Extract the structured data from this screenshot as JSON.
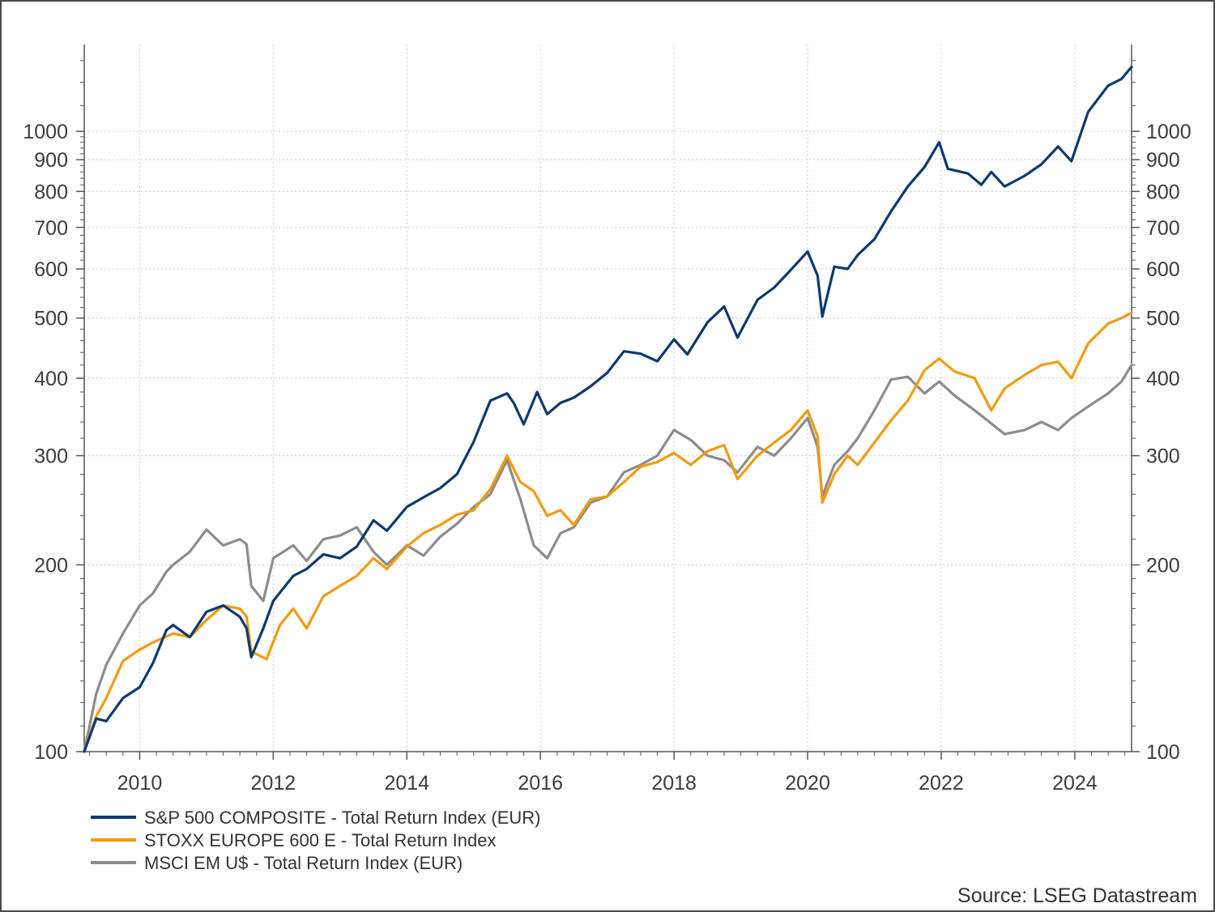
{
  "chart_data": {
    "type": "line",
    "title": "",
    "xlabel": "",
    "ylabel": "",
    "y_scale": "log",
    "ylim": [
      100,
      1380
    ],
    "xlim": [
      2009.17,
      2024.85
    ],
    "grid": true,
    "legend_position": "bottom-left",
    "x_ticks": [
      2010,
      2012,
      2014,
      2016,
      2018,
      2020,
      2022,
      2024
    ],
    "x_tick_labels": [
      "2010",
      "2012",
      "2014",
      "2016",
      "2018",
      "2020",
      "2022",
      "2024"
    ],
    "y_ticks": [
      100,
      200,
      300,
      400,
      500,
      600,
      700,
      800,
      900,
      1000
    ],
    "y_tick_labels": [
      "100",
      "200",
      "300",
      "400",
      "500",
      "600",
      "700",
      "800",
      "900",
      "1000"
    ],
    "series": [
      {
        "name": "S&P 500 COMPOSITE - Total Return Index (EUR)",
        "color": "#0b3a6e",
        "points": [
          [
            2009.17,
            100
          ],
          [
            2009.35,
            113
          ],
          [
            2009.5,
            112
          ],
          [
            2009.75,
            122
          ],
          [
            2010.0,
            127
          ],
          [
            2010.2,
            139
          ],
          [
            2010.4,
            157
          ],
          [
            2010.5,
            160
          ],
          [
            2010.75,
            153
          ],
          [
            2011.0,
            168
          ],
          [
            2011.25,
            172
          ],
          [
            2011.5,
            165
          ],
          [
            2011.6,
            158
          ],
          [
            2011.67,
            142
          ],
          [
            2011.85,
            158
          ],
          [
            2012.0,
            175
          ],
          [
            2012.3,
            192
          ],
          [
            2012.5,
            197
          ],
          [
            2012.75,
            208
          ],
          [
            2013.0,
            205
          ],
          [
            2013.25,
            214
          ],
          [
            2013.5,
            236
          ],
          [
            2013.7,
            227
          ],
          [
            2014.0,
            248
          ],
          [
            2014.25,
            257
          ],
          [
            2014.5,
            266
          ],
          [
            2014.75,
            280
          ],
          [
            2015.0,
            316
          ],
          [
            2015.25,
            368
          ],
          [
            2015.5,
            378
          ],
          [
            2015.6,
            365
          ],
          [
            2015.75,
            337
          ],
          [
            2015.95,
            380
          ],
          [
            2016.1,
            350
          ],
          [
            2016.3,
            365
          ],
          [
            2016.5,
            372
          ],
          [
            2016.75,
            388
          ],
          [
            2017.0,
            408
          ],
          [
            2017.25,
            442
          ],
          [
            2017.5,
            438
          ],
          [
            2017.75,
            426
          ],
          [
            2018.0,
            462
          ],
          [
            2018.2,
            437
          ],
          [
            2018.5,
            492
          ],
          [
            2018.75,
            522
          ],
          [
            2018.95,
            465
          ],
          [
            2019.25,
            535
          ],
          [
            2019.5,
            560
          ],
          [
            2019.75,
            598
          ],
          [
            2020.0,
            640
          ],
          [
            2020.15,
            585
          ],
          [
            2020.22,
            503
          ],
          [
            2020.4,
            605
          ],
          [
            2020.6,
            600
          ],
          [
            2020.75,
            632
          ],
          [
            2021.0,
            670
          ],
          [
            2021.25,
            743
          ],
          [
            2021.5,
            815
          ],
          [
            2021.75,
            876
          ],
          [
            2021.97,
            960
          ],
          [
            2022.1,
            870
          ],
          [
            2022.4,
            855
          ],
          [
            2022.6,
            820
          ],
          [
            2022.75,
            860
          ],
          [
            2022.95,
            815
          ],
          [
            2023.25,
            848
          ],
          [
            2023.5,
            885
          ],
          [
            2023.75,
            945
          ],
          [
            2023.95,
            895
          ],
          [
            2024.2,
            1075
          ],
          [
            2024.5,
            1185
          ],
          [
            2024.7,
            1215
          ],
          [
            2024.85,
            1270
          ]
        ]
      },
      {
        "name": "STOXX EUROPE 600 E - Total Return Index",
        "color": "#f29a0e",
        "points": [
          [
            2009.17,
            100
          ],
          [
            2009.35,
            114
          ],
          [
            2009.5,
            122
          ],
          [
            2009.75,
            140
          ],
          [
            2010.0,
            146
          ],
          [
            2010.2,
            150
          ],
          [
            2010.5,
            155
          ],
          [
            2010.75,
            153
          ],
          [
            2011.0,
            163
          ],
          [
            2011.25,
            172
          ],
          [
            2011.5,
            170
          ],
          [
            2011.6,
            165
          ],
          [
            2011.67,
            145
          ],
          [
            2011.9,
            141
          ],
          [
            2012.1,
            160
          ],
          [
            2012.3,
            170
          ],
          [
            2012.5,
            158
          ],
          [
            2012.75,
            178
          ],
          [
            2013.0,
            185
          ],
          [
            2013.25,
            192
          ],
          [
            2013.5,
            205
          ],
          [
            2013.7,
            197
          ],
          [
            2014.0,
            214
          ],
          [
            2014.25,
            225
          ],
          [
            2014.5,
            232
          ],
          [
            2014.75,
            241
          ],
          [
            2015.0,
            245
          ],
          [
            2015.25,
            265
          ],
          [
            2015.5,
            300
          ],
          [
            2015.7,
            272
          ],
          [
            2015.9,
            263
          ],
          [
            2016.1,
            240
          ],
          [
            2016.3,
            245
          ],
          [
            2016.5,
            232
          ],
          [
            2016.75,
            255
          ],
          [
            2017.0,
            258
          ],
          [
            2017.25,
            272
          ],
          [
            2017.5,
            288
          ],
          [
            2017.75,
            293
          ],
          [
            2018.0,
            303
          ],
          [
            2018.25,
            290
          ],
          [
            2018.5,
            305
          ],
          [
            2018.75,
            312
          ],
          [
            2018.95,
            275
          ],
          [
            2019.25,
            300
          ],
          [
            2019.5,
            315
          ],
          [
            2019.75,
            330
          ],
          [
            2020.0,
            355
          ],
          [
            2020.15,
            322
          ],
          [
            2020.22,
            252
          ],
          [
            2020.4,
            280
          ],
          [
            2020.6,
            300
          ],
          [
            2020.75,
            290
          ],
          [
            2021.0,
            315
          ],
          [
            2021.25,
            342
          ],
          [
            2021.5,
            368
          ],
          [
            2021.75,
            412
          ],
          [
            2021.97,
            430
          ],
          [
            2022.2,
            410
          ],
          [
            2022.5,
            400
          ],
          [
            2022.75,
            355
          ],
          [
            2022.95,
            385
          ],
          [
            2023.25,
            405
          ],
          [
            2023.5,
            420
          ],
          [
            2023.75,
            425
          ],
          [
            2023.95,
            400
          ],
          [
            2024.2,
            455
          ],
          [
            2024.5,
            490
          ],
          [
            2024.7,
            500
          ],
          [
            2024.85,
            510
          ]
        ]
      },
      {
        "name": "MSCI EM U$ - Total Return Index (EUR)",
        "color": "#8c8c8c",
        "points": [
          [
            2009.17,
            100
          ],
          [
            2009.35,
            124
          ],
          [
            2009.5,
            138
          ],
          [
            2009.75,
            155
          ],
          [
            2010.0,
            172
          ],
          [
            2010.2,
            180
          ],
          [
            2010.4,
            195
          ],
          [
            2010.5,
            200
          ],
          [
            2010.75,
            210
          ],
          [
            2011.0,
            228
          ],
          [
            2011.25,
            215
          ],
          [
            2011.5,
            220
          ],
          [
            2011.6,
            216
          ],
          [
            2011.67,
            185
          ],
          [
            2011.85,
            175
          ],
          [
            2012.0,
            205
          ],
          [
            2012.3,
            215
          ],
          [
            2012.5,
            203
          ],
          [
            2012.75,
            220
          ],
          [
            2013.0,
            223
          ],
          [
            2013.25,
            230
          ],
          [
            2013.5,
            210
          ],
          [
            2013.7,
            200
          ],
          [
            2014.0,
            215
          ],
          [
            2014.25,
            207
          ],
          [
            2014.5,
            222
          ],
          [
            2014.75,
            233
          ],
          [
            2015.0,
            248
          ],
          [
            2015.25,
            260
          ],
          [
            2015.5,
            295
          ],
          [
            2015.7,
            255
          ],
          [
            2015.9,
            215
          ],
          [
            2016.1,
            205
          ],
          [
            2016.3,
            225
          ],
          [
            2016.5,
            230
          ],
          [
            2016.75,
            252
          ],
          [
            2017.0,
            258
          ],
          [
            2017.25,
            282
          ],
          [
            2017.5,
            290
          ],
          [
            2017.75,
            300
          ],
          [
            2018.0,
            330
          ],
          [
            2018.25,
            318
          ],
          [
            2018.5,
            300
          ],
          [
            2018.75,
            295
          ],
          [
            2018.95,
            282
          ],
          [
            2019.25,
            310
          ],
          [
            2019.5,
            300
          ],
          [
            2019.75,
            320
          ],
          [
            2020.0,
            345
          ],
          [
            2020.15,
            310
          ],
          [
            2020.22,
            258
          ],
          [
            2020.4,
            290
          ],
          [
            2020.6,
            305
          ],
          [
            2020.75,
            320
          ],
          [
            2021.0,
            355
          ],
          [
            2021.25,
            398
          ],
          [
            2021.5,
            402
          ],
          [
            2021.75,
            378
          ],
          [
            2021.97,
            395
          ],
          [
            2022.2,
            375
          ],
          [
            2022.5,
            355
          ],
          [
            2022.75,
            338
          ],
          [
            2022.95,
            325
          ],
          [
            2023.25,
            330
          ],
          [
            2023.5,
            340
          ],
          [
            2023.75,
            330
          ],
          [
            2023.95,
            345
          ],
          [
            2024.2,
            360
          ],
          [
            2024.5,
            378
          ],
          [
            2024.7,
            395
          ],
          [
            2024.85,
            420
          ]
        ]
      }
    ],
    "source": "Source: LSEG Datastream"
  }
}
